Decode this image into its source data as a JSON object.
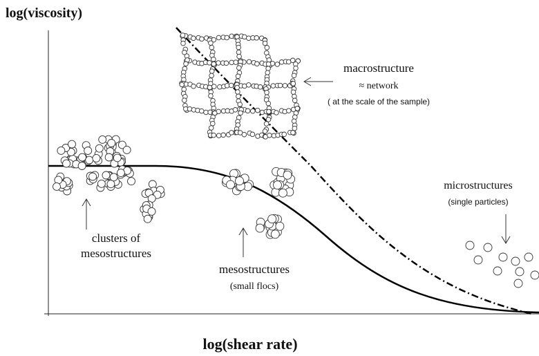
{
  "axes": {
    "y_label": "log(viscosity)",
    "x_label": "log(shear rate)"
  },
  "annotations": {
    "macrostructure": {
      "lines": [
        "macrostructure",
        "≈ network",
        "( at the scale of the sample)"
      ]
    },
    "microstructures": {
      "lines": [
        "microstructures",
        "(single particles)"
      ]
    },
    "clusters": {
      "lines": [
        "clusters of",
        "mesostructures"
      ]
    },
    "mesostructures": {
      "lines": [
        "mesostructures",
        "(small flocs)"
      ]
    }
  }
}
